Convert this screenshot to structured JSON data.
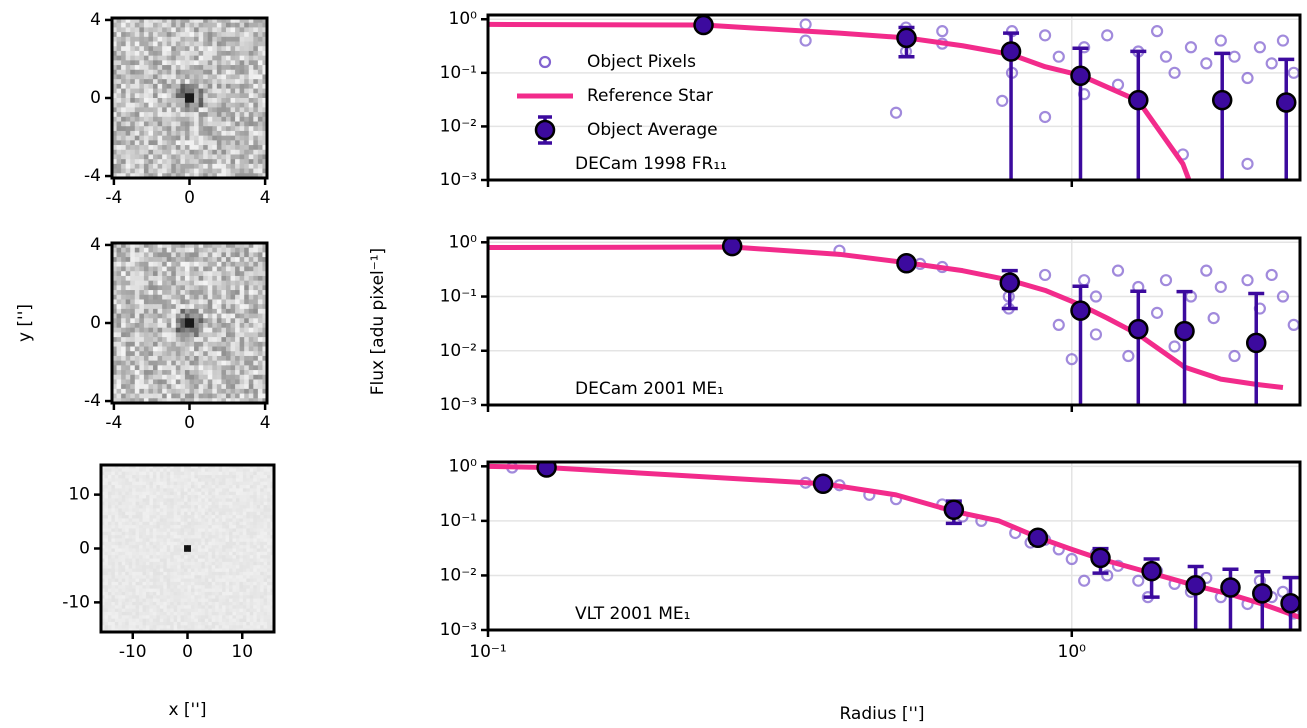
{
  "chart_data": [
    {
      "type": "image",
      "xlim": [
        -4.1,
        4.1
      ],
      "ylim": [
        -4.1,
        4.1
      ],
      "xticks": [
        -4,
        0,
        4
      ],
      "yticks": [
        -4,
        0,
        4
      ]
    },
    {
      "type": "image",
      "xlim": [
        -4.1,
        4.1
      ],
      "ylim": [
        -4.1,
        4.1
      ],
      "xticks": [
        -4,
        0,
        4
      ],
      "yticks": [
        -4,
        0,
        4
      ],
      "ylabel": "y ['']"
    },
    {
      "type": "image",
      "xlim": [
        -15.8,
        15.8
      ],
      "ylim": [
        -15.5,
        15.5
      ],
      "xticks": [
        -10,
        0,
        10
      ],
      "yticks": [
        -10,
        0,
        10
      ],
      "xlabel": "x ['']"
    },
    {
      "type": "line",
      "xscale": "log",
      "yscale": "log",
      "xlim": [
        0.1,
        2.46
      ],
      "ylim": [
        0.001,
        1.2
      ],
      "yticks": [
        {
          "value": 0.001,
          "label": "10⁻³"
        },
        {
          "value": 0.01,
          "label": "10⁻²"
        },
        {
          "value": 0.1,
          "label": "10⁻¹"
        },
        {
          "value": 1,
          "label": "10⁰"
        }
      ],
      "grid": true,
      "legend": "upper left",
      "label": "DECam 1998 FR₁₁",
      "series": [
        {
          "name": "Object Pixels",
          "type": "scatter",
          "color": "#8263d0",
          "x": [
            0.234,
            0.35,
            0.35,
            0.52,
            0.52,
            0.6,
            0.6,
            0.5,
            0.79,
            0.79,
            0.76,
            0.9,
            0.9,
            0.95,
            1.05,
            1.05,
            1.15,
            1.2,
            1.3,
            1.4,
            1.45,
            1.5,
            1.6,
            1.7,
            1.8,
            1.9,
            2.0,
            2.1,
            2.2,
            2.3,
            2.4,
            1.55,
            2.0
          ],
          "values": [
            0.8,
            0.8,
            0.4,
            0.7,
            0.25,
            0.6,
            0.35,
            0.018,
            0.6,
            0.1,
            0.03,
            0.5,
            0.015,
            0.2,
            0.3,
            0.04,
            0.5,
            0.06,
            0.25,
            0.6,
            0.2,
            0.1,
            0.3,
            0.15,
            0.4,
            0.2,
            0.08,
            0.3,
            0.15,
            0.4,
            0.1,
            0.003,
            0.002
          ]
        },
        {
          "name": "Reference Star",
          "type": "line",
          "color": "#f22b8b",
          "x": [
            0.1,
            0.234,
            0.4,
            0.52,
            0.65,
            0.787,
            0.9,
            1.035,
            1.3,
            1.55,
            1.6
          ],
          "values": [
            0.8,
            0.78,
            0.55,
            0.45,
            0.32,
            0.22,
            0.13,
            0.09,
            0.03,
            0.002,
            0.0008
          ]
        },
        {
          "name": "Object Average",
          "type": "errorbar",
          "color": "#3c0a9e",
          "x": [
            0.234,
            0.521,
            0.787,
            1.035,
            1.3,
            1.81,
            2.33
          ],
          "values": [
            0.78,
            0.45,
            0.25,
            0.088,
            0.031,
            0.031,
            0.028
          ],
          "errors": [
            0.02,
            0.25,
            0.3,
            0.2,
            0.22,
            0.2,
            0.15
          ]
        }
      ]
    },
    {
      "type": "line",
      "xscale": "log",
      "yscale": "log",
      "xlim": [
        0.1,
        2.46
      ],
      "ylim": [
        0.001,
        1.2
      ],
      "yticks": [
        {
          "value": 0.001,
          "label": "10⁻³"
        },
        {
          "value": 0.01,
          "label": "10⁻²"
        },
        {
          "value": 0.1,
          "label": "10⁻¹"
        },
        {
          "value": 1,
          "label": "10⁰"
        }
      ],
      "grid": true,
      "label": "DECam 2001 ME₁",
      "ylabel": "Flux [adu pixel⁻¹]",
      "series": [
        {
          "type": "scatter",
          "color": "#8263d0",
          "x": [
            0.262,
            0.4,
            0.55,
            0.6,
            0.78,
            0.78,
            0.9,
            0.95,
            1.0,
            1.05,
            1.1,
            1.1,
            1.2,
            1.25,
            1.3,
            1.4,
            1.45,
            1.5,
            1.6,
            1.7,
            1.75,
            1.8,
            1.9,
            2.0,
            2.1,
            2.2,
            2.3,
            2.4
          ],
          "values": [
            0.85,
            0.7,
            0.4,
            0.35,
            0.1,
            0.06,
            0.25,
            0.03,
            0.007,
            0.2,
            0.1,
            0.02,
            0.3,
            0.008,
            0.15,
            0.05,
            0.2,
            0.012,
            0.1,
            0.3,
            0.04,
            0.15,
            0.008,
            0.2,
            0.06,
            0.25,
            0.1,
            0.03
          ]
        },
        {
          "type": "line",
          "color": "#f22b8b",
          "x": [
            0.1,
            0.262,
            0.4,
            0.521,
            0.65,
            0.783,
            0.9,
            1.035,
            1.15,
            1.3,
            1.56,
            1.8,
            2.07,
            2.3
          ],
          "values": [
            0.8,
            0.82,
            0.6,
            0.42,
            0.3,
            0.2,
            0.13,
            0.07,
            0.04,
            0.02,
            0.005,
            0.003,
            0.0024,
            0.0021
          ]
        },
        {
          "type": "errorbar",
          "color": "#3c0a9e",
          "x": [
            0.262,
            0.521,
            0.783,
            1.035,
            1.3,
            1.56,
            2.07
          ],
          "values": [
            0.85,
            0.41,
            0.18,
            0.055,
            0.025,
            0.023,
            0.014
          ],
          "errors": [
            0.02,
            0.05,
            0.12,
            0.1,
            0.1,
            0.1,
            0.1
          ]
        }
      ]
    },
    {
      "type": "line",
      "xscale": "log",
      "yscale": "log",
      "xlim": [
        0.1,
        2.46
      ],
      "ylim": [
        0.001,
        1.2
      ],
      "xticks": [
        {
          "value": 0.1,
          "label": "10⁻¹"
        },
        {
          "value": 1,
          "label": "10⁰"
        }
      ],
      "yticks": [
        {
          "value": 0.001,
          "label": "10⁻³"
        },
        {
          "value": 0.01,
          "label": "10⁻²"
        },
        {
          "value": 0.1,
          "label": "10⁻¹"
        },
        {
          "value": 1,
          "label": "10⁰"
        }
      ],
      "grid": true,
      "label": "VLT 2001 ME₁",
      "xlabel": "Radius ['']",
      "series": [
        {
          "type": "scatter",
          "color": "#8263d0",
          "x": [
            0.11,
            0.126,
            0.35,
            0.4,
            0.45,
            0.5,
            0.6,
            0.65,
            0.7,
            0.8,
            0.85,
            0.9,
            0.95,
            1.0,
            1.05,
            1.1,
            1.15,
            1.2,
            1.3,
            1.35,
            1.4,
            1.5,
            1.6,
            1.7,
            1.8,
            1.9,
            2.0,
            2.1,
            2.2,
            2.3,
            2.4
          ],
          "values": [
            0.95,
            0.9,
            0.5,
            0.45,
            0.3,
            0.25,
            0.2,
            0.12,
            0.1,
            0.06,
            0.04,
            0.045,
            0.03,
            0.02,
            0.008,
            0.025,
            0.01,
            0.015,
            0.008,
            0.004,
            0.012,
            0.007,
            0.005,
            0.009,
            0.004,
            0.006,
            0.003,
            0.008,
            0.004,
            0.005,
            0.002
          ]
        },
        {
          "type": "line",
          "color": "#f22b8b",
          "x": [
            0.1,
            0.126,
            0.375,
            0.5,
            0.628,
            0.75,
            0.875,
            1.0,
            1.12,
            1.37,
            1.63,
            1.87,
            2.12,
            2.46
          ],
          "values": [
            1.0,
            0.95,
            0.48,
            0.3,
            0.15,
            0.1,
            0.05,
            0.03,
            0.02,
            0.011,
            0.0065,
            0.0045,
            0.003,
            0.0017
          ]
        },
        {
          "type": "errorbar",
          "color": "#3c0a9e",
          "x": [
            0.126,
            0.375,
            0.628,
            0.875,
            1.12,
            1.37,
            1.63,
            1.87,
            2.12,
            2.37
          ],
          "values": [
            0.95,
            0.48,
            0.16,
            0.049,
            0.021,
            0.012,
            0.0066,
            0.006,
            0.0047,
            0.0031
          ],
          "errors": [
            0.02,
            0.03,
            0.07,
            0.01,
            0.01,
            0.008,
            0.008,
            0.007,
            0.007,
            0.006
          ]
        }
      ]
    }
  ]
}
